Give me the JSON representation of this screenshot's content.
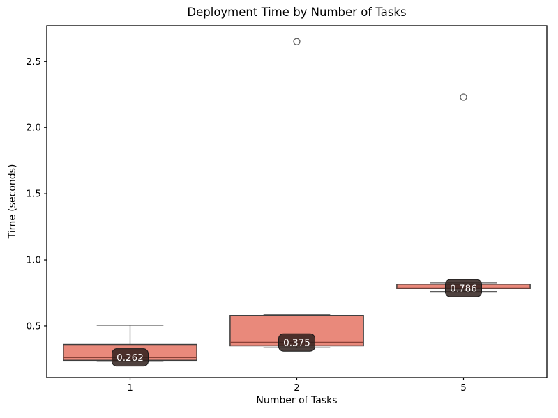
{
  "chart_data": {
    "type": "box",
    "title": "Deployment Time by Number of Tasks",
    "xlabel": "Number of Tasks",
    "ylabel": "Time (seconds)",
    "categories": [
      "1",
      "2",
      "5"
    ],
    "yticks": [
      {
        "value": 0.5,
        "label": "0.5"
      },
      {
        "value": 1.0,
        "label": "1.0"
      },
      {
        "value": 1.5,
        "label": "1.5"
      },
      {
        "value": 2.0,
        "label": "2.0"
      },
      {
        "value": 2.5,
        "label": "2.5"
      }
    ],
    "ylim": [
      0.11,
      2.77
    ],
    "grid": false,
    "legend": null,
    "series": [
      {
        "category": "1",
        "whisker_low": 0.23,
        "q1": 0.24,
        "median": 0.262,
        "q3": 0.36,
        "whisker_high": 0.505,
        "outliers": [],
        "median_label": "0.262"
      },
      {
        "category": "2",
        "whisker_low": 0.335,
        "q1": 0.35,
        "median": 0.375,
        "q3": 0.58,
        "whisker_high": 0.585,
        "outliers": [
          2.65
        ],
        "median_label": "0.375"
      },
      {
        "category": "5",
        "whisker_low": 0.76,
        "q1": 0.783,
        "median": 0.786,
        "q3": 0.817,
        "whisker_high": 0.827,
        "outliers": [
          2.23
        ],
        "median_label": "0.786"
      }
    ],
    "colors": {
      "box_fill": "#e9897b",
      "box_edge": "#3d3d3d",
      "whisker": "#5c5c5c",
      "median_line": "#8b4137",
      "outlier_edge": "#5c5c5c",
      "annotation_bg": "#2f201c",
      "annotation_border": "#1a1a1a",
      "annotation_text": "#ffffff",
      "spine": "#000000"
    }
  }
}
